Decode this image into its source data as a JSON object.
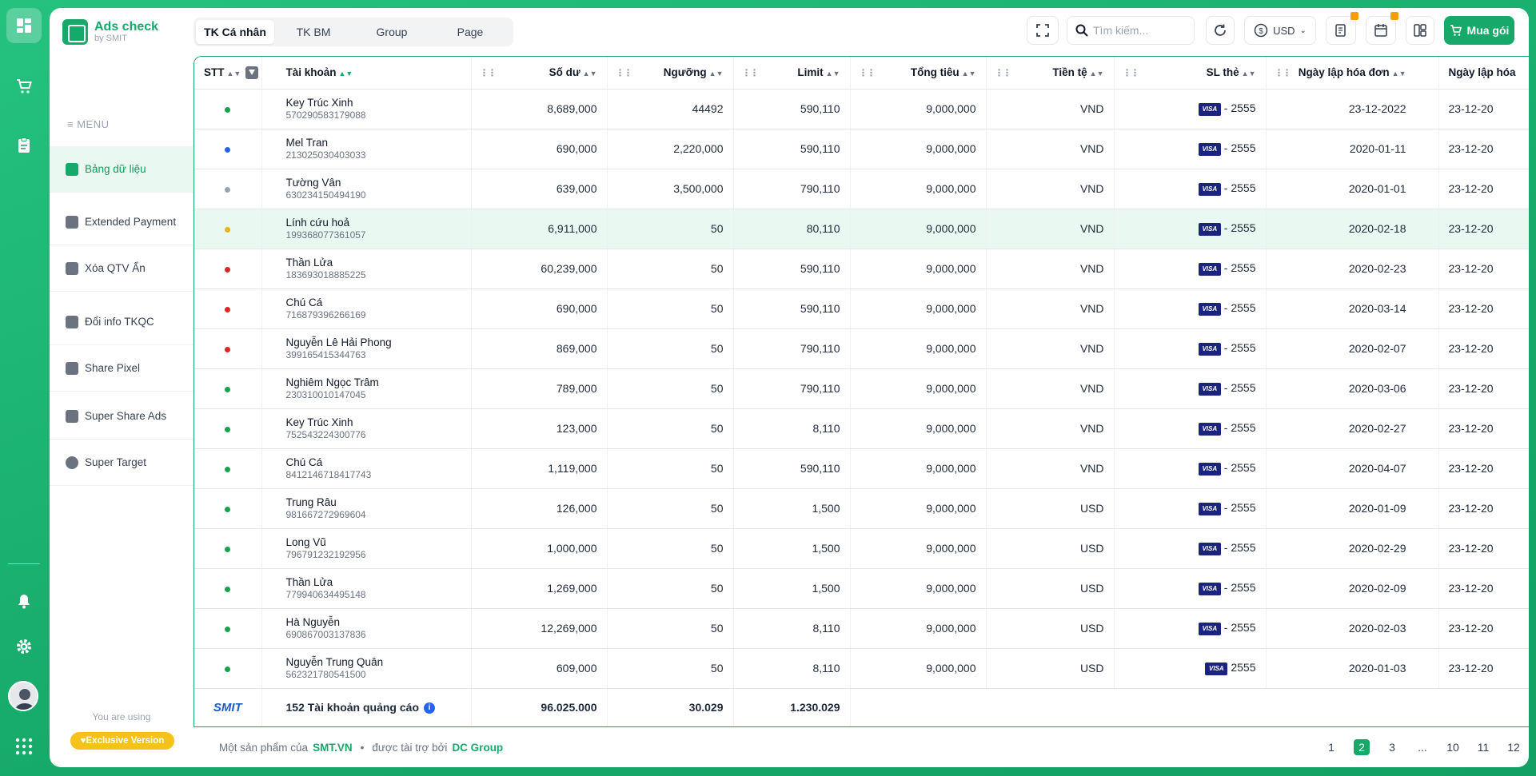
{
  "app": {
    "title": "Ads check",
    "subtitle": "by SMIT"
  },
  "sidebar": {
    "menu_label": "MENU",
    "items": [
      {
        "label": "Bảng dữ liệu",
        "active": true
      },
      {
        "label": "Extended Payment"
      },
      {
        "label": "Xóa QTV Ẩn"
      },
      {
        "label": "Đổi info TKQC"
      },
      {
        "label": "Share Pixel"
      },
      {
        "label": "Super Share Ads"
      },
      {
        "label": "Super Target"
      }
    ],
    "using_label": "You are using",
    "version_badge": "Exclusive Version"
  },
  "tabs": [
    "TK Cá nhân",
    "TK BM",
    "Group",
    "Page"
  ],
  "toolbar": {
    "search_placeholder": "Tìm kiếm...",
    "currency": "USD",
    "buy_label": "Mua gói"
  },
  "table": {
    "columns": [
      "STT",
      "Tài khoản",
      "Số dư",
      "Ngưỡng",
      "Limit",
      "Tổng tiêu",
      "Tiền tệ",
      "SL thẻ",
      "Ngày lập hóa đơn",
      "Ngày lập hóa"
    ],
    "status_colors": {
      "green": "#16a34a",
      "blue": "#2563eb",
      "gray": "#9ca3af",
      "yellow": "#eab308",
      "red": "#dc2626"
    },
    "rows": [
      {
        "status": "green",
        "name": "Key Trúc Xinh",
        "id": "570290583179088",
        "balance": "8,689,000",
        "threshold": "44492",
        "limit": "590,110",
        "spend": "9,000,000",
        "currency": "VND",
        "card": "- 2555",
        "invoice_date": "23-12-2022",
        "invoice_date2": "23-12-20"
      },
      {
        "status": "blue",
        "name": "Mel Tran",
        "id": "213025030403033",
        "balance": "690,000",
        "threshold": "2,220,000",
        "limit": "590,110",
        "spend": "9,000,000",
        "currency": "VND",
        "card": "- 2555",
        "invoice_date": "2020-01-11",
        "invoice_date2": "23-12-20"
      },
      {
        "status": "gray",
        "name": "Tường Vân",
        "id": "630234150494190",
        "balance": "639,000",
        "threshold": "3,500,000",
        "limit": "790,110",
        "spend": "9,000,000",
        "currency": "VND",
        "card": "- 2555",
        "invoice_date": "2020-01-01",
        "invoice_date2": "23-12-20"
      },
      {
        "status": "yellow",
        "name": "Lính cứu hoả",
        "id": "199368077361057",
        "balance": "6,911,000",
        "threshold": "50",
        "limit": "80,110",
        "spend": "9,000,000",
        "currency": "VND",
        "card": "- 2555",
        "invoice_date": "2020-02-18",
        "invoice_date2": "23-12-20",
        "highlight": true
      },
      {
        "status": "red",
        "name": "Thần Lửa",
        "id": "183693018885225",
        "balance": "60,239,000",
        "threshold": "50",
        "limit": "590,110",
        "spend": "9,000,000",
        "currency": "VND",
        "card": "- 2555",
        "invoice_date": "2020-02-23",
        "invoice_date2": "23-12-20"
      },
      {
        "status": "red",
        "name": "Chú Cá",
        "id": "716879396266169",
        "balance": "690,000",
        "threshold": "50",
        "limit": "590,110",
        "spend": "9,000,000",
        "currency": "VND",
        "card": "- 2555",
        "invoice_date": "2020-03-14",
        "invoice_date2": "23-12-20"
      },
      {
        "status": "red",
        "name": "Nguyễn Lê Hải Phong",
        "id": "399165415344763",
        "balance": "869,000",
        "threshold": "50",
        "limit": "790,110",
        "spend": "9,000,000",
        "currency": "VND",
        "card": "- 2555",
        "invoice_date": "2020-02-07",
        "invoice_date2": "23-12-20"
      },
      {
        "status": "green",
        "name": "Nghiêm Ngọc Trâm",
        "id": "230310010147045",
        "balance": "789,000",
        "threshold": "50",
        "limit": "790,110",
        "spend": "9,000,000",
        "currency": "VND",
        "card": "- 2555",
        "invoice_date": "2020-03-06",
        "invoice_date2": "23-12-20"
      },
      {
        "status": "green",
        "name": "Key Trúc Xinh",
        "id": "752543224300776",
        "balance": "123,000",
        "threshold": "50",
        "limit": "8,110",
        "spend": "9,000,000",
        "currency": "VND",
        "card": "- 2555",
        "invoice_date": "2020-02-27",
        "invoice_date2": "23-12-20"
      },
      {
        "status": "green",
        "name": "Chú Cá",
        "id": "8412146718417743",
        "balance": "1,119,000",
        "threshold": "50",
        "limit": "590,110",
        "spend": "9,000,000",
        "currency": "VND",
        "card": "- 2555",
        "invoice_date": "2020-04-07",
        "invoice_date2": "23-12-20"
      },
      {
        "status": "green",
        "name": "Trung Râu",
        "id": "981667272969604",
        "balance": "126,000",
        "threshold": "50",
        "limit": "1,500",
        "spend": "9,000,000",
        "currency": "USD",
        "card": "- 2555",
        "invoice_date": "2020-01-09",
        "invoice_date2": "23-12-20"
      },
      {
        "status": "green",
        "name": "Long Vũ",
        "id": "796791232192956",
        "balance": "1,000,000",
        "threshold": "50",
        "limit": "1,500",
        "spend": "9,000,000",
        "currency": "USD",
        "card": "- 2555",
        "invoice_date": "2020-02-29",
        "invoice_date2": "23-12-20"
      },
      {
        "status": "green",
        "name": "Thần Lửa",
        "id": "779940634495148",
        "balance": "1,269,000",
        "threshold": "50",
        "limit": "1,500",
        "spend": "9,000,000",
        "currency": "USD",
        "card": "- 2555",
        "invoice_date": "2020-02-09",
        "invoice_date2": "23-12-20"
      },
      {
        "status": "green",
        "name": "Hà Nguyễn",
        "id": "690867003137836",
        "balance": "12,269,000",
        "threshold": "50",
        "limit": "8,110",
        "spend": "9,000,000",
        "currency": "USD",
        "card": "- 2555",
        "invoice_date": "2020-02-03",
        "invoice_date2": "23-12-20"
      },
      {
        "status": "green",
        "name": "Nguyễn Trung Quân",
        "id": "562321780541500",
        "balance": "609,000",
        "threshold": "50",
        "limit": "8,110",
        "spend": "9,000,000",
        "currency": "USD",
        "card": "2555",
        "invoice_date": "2020-01-03",
        "invoice_date2": "23-12-20"
      }
    ],
    "summary": {
      "brand": "SMIT",
      "accounts": "152 Tài khoản quảng cáo",
      "balance": "96.025.000",
      "threshold": "30.029",
      "limit": "1.230.029"
    }
  },
  "footer": {
    "prefix": "Một sản phẩm của",
    "company": "SMT.VN",
    "sponsor_prefix": "được tài trợ bởi",
    "sponsor": "DC Group",
    "pages": [
      "1",
      "2",
      "3",
      "...",
      "10",
      "11",
      "12"
    ],
    "current_page": "2"
  }
}
